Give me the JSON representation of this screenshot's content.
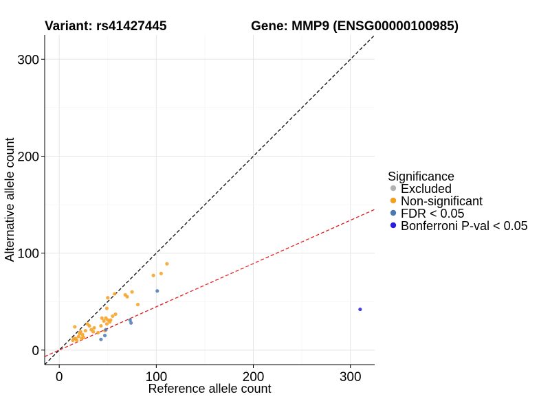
{
  "chart_data": {
    "type": "scatter",
    "title_left": "Variant: rs41427445",
    "title_right": "Gene: MMP9 (ENSG00000100985)",
    "xlabel": "Reference allele count",
    "ylabel": "Alternative allele count",
    "xlim": [
      -15,
      325
    ],
    "ylim": [
      -15,
      325
    ],
    "x_ticks": [
      0,
      100,
      200,
      300
    ],
    "y_ticks": [
      0,
      100,
      200,
      300
    ],
    "grid": true,
    "legend": {
      "title": "Significance",
      "position": "right",
      "entries": [
        {
          "label": "Excluded",
          "color": "#b3b3b3"
        },
        {
          "label": "Non-significant",
          "color": "#f5a020"
        },
        {
          "label": "FDR < 0.05",
          "color": "#4a78b0"
        },
        {
          "label": "Bonferroni P-val < 0.05",
          "color": "#2a1fd6"
        }
      ]
    },
    "reference_lines": [
      {
        "name": "identity",
        "slope": 1.0,
        "intercept": 0,
        "color": "#000000",
        "dash": "dashed"
      },
      {
        "name": "fitted-ratio",
        "slope": 0.4464,
        "intercept": 0,
        "color": "#e41a1c",
        "dash": "dashed"
      }
    ],
    "series": [
      {
        "name": "Non-significant",
        "color": "#f5a020",
        "points": [
          [
            14,
            10
          ],
          [
            15,
            12
          ],
          [
            16,
            24
          ],
          [
            17,
            12
          ],
          [
            18,
            10
          ],
          [
            20,
            14
          ],
          [
            21,
            17
          ],
          [
            22,
            19
          ],
          [
            23,
            12
          ],
          [
            24,
            16
          ],
          [
            25,
            13
          ],
          [
            27,
            20
          ],
          [
            29,
            27
          ],
          [
            31,
            25
          ],
          [
            33,
            21
          ],
          [
            35,
            19
          ],
          [
            36,
            23
          ],
          [
            40,
            18
          ],
          [
            43,
            25
          ],
          [
            44,
            33
          ],
          [
            46,
            30
          ],
          [
            47,
            20
          ],
          [
            48,
            33
          ],
          [
            49,
            27
          ],
          [
            49,
            43
          ],
          [
            50,
            31
          ],
          [
            50,
            54
          ],
          [
            52,
            29
          ],
          [
            53,
            31
          ],
          [
            55,
            35
          ],
          [
            57,
            58
          ],
          [
            58,
            37
          ],
          [
            68,
            57
          ],
          [
            70,
            55
          ],
          [
            75,
            60
          ],
          [
            81,
            47
          ],
          [
            97,
            77
          ],
          [
            105,
            79
          ],
          [
            111,
            89
          ]
        ]
      },
      {
        "name": "FDR < 0.05",
        "color": "#4a78b0",
        "points": [
          [
            43,
            11
          ],
          [
            47,
            15
          ],
          [
            48,
            21
          ],
          [
            73,
            31
          ],
          [
            74,
            28
          ],
          [
            101,
            61
          ]
        ]
      },
      {
        "name": "Bonferroni P-val < 0.05",
        "color": "#2a1fd6",
        "points": [
          [
            310,
            42
          ]
        ]
      }
    ]
  }
}
